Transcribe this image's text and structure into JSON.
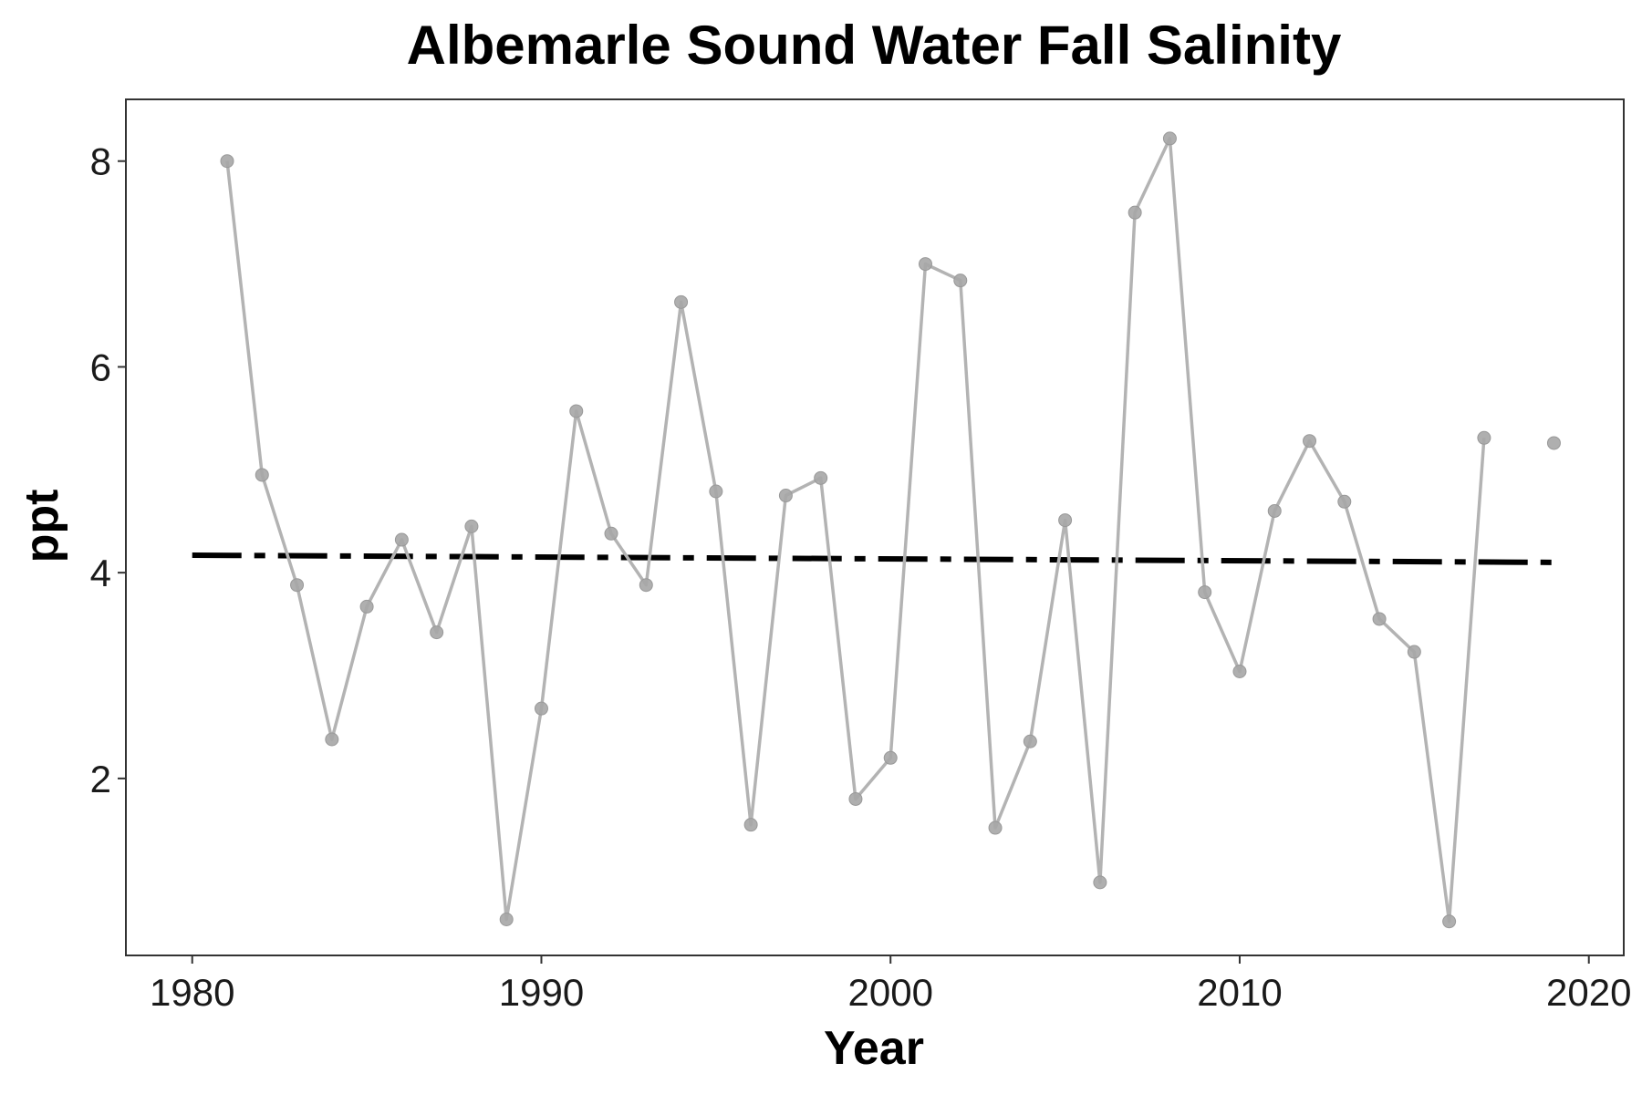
{
  "chart_data": {
    "type": "line",
    "title": "Albemarle Sound Water Fall Salinity",
    "xlabel": "Year",
    "ylabel": "ppt",
    "xlim": [
      1978.1,
      2021.0
    ],
    "ylim": [
      0.28,
      8.6
    ],
    "x_ticks": [
      1980,
      1990,
      2000,
      2010,
      2020
    ],
    "y_ticks": [
      2,
      4,
      6,
      8
    ],
    "grid": false,
    "series": [
      {
        "style": "line-with-points",
        "color": "#b3b3b3",
        "x": [
          1981,
          1982,
          1983,
          1984,
          1985,
          1986,
          1987,
          1988,
          1989,
          1990,
          1991,
          1992,
          1993,
          1994,
          1995,
          1996,
          1997,
          1998,
          1999,
          2000,
          2001,
          2002,
          2003,
          2004,
          2005,
          2006,
          2007,
          2008,
          2009,
          2010,
          2011,
          2012,
          2013,
          2014,
          2015,
          2016,
          2017,
          2018,
          2019
        ],
        "y": [
          8.0,
          4.95,
          3.88,
          2.38,
          3.67,
          4.32,
          3.42,
          4.45,
          0.63,
          2.68,
          5.57,
          4.38,
          3.88,
          6.63,
          4.79,
          1.55,
          4.75,
          4.92,
          1.8,
          2.2,
          7.0,
          6.84,
          1.52,
          2.36,
          4.51,
          0.99,
          7.5,
          8.22,
          3.81,
          3.04,
          4.6,
          5.28,
          4.69,
          3.55,
          3.23,
          0.61,
          5.31,
          null,
          5.26
        ]
      },
      {
        "style": "dashed-trend",
        "color": "#000000",
        "x": [
          1980,
          2019
        ],
        "y": [
          4.17,
          4.1
        ]
      }
    ]
  }
}
